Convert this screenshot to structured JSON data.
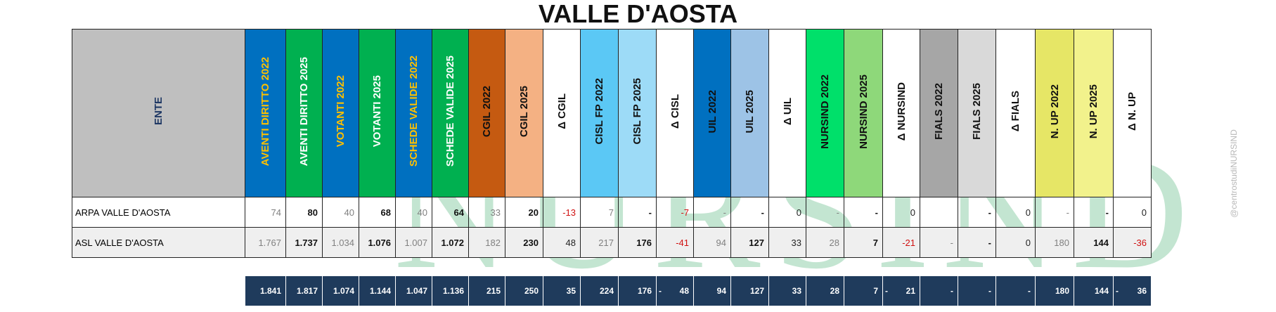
{
  "title": "VALLE D'AOSTA",
  "side_watermark": "@centrostudiNURSIND",
  "background_watermark": "NURSIND",
  "header": {
    "ente": "ENTE",
    "columns": [
      {
        "label": "AVENTI DIRITTO 2022",
        "bg": "#0070C0",
        "fg": "#FFC000"
      },
      {
        "label": "AVENTI DIRITTO 2025",
        "bg": "#00B050",
        "fg": "#FFFFFF"
      },
      {
        "label": "VOTANTI 2022",
        "bg": "#0070C0",
        "fg": "#FFC000"
      },
      {
        "label": "VOTANTI 2025",
        "bg": "#00B050",
        "fg": "#FFFFFF"
      },
      {
        "label": "SCHEDE VALIDE 2022",
        "bg": "#0070C0",
        "fg": "#FFC000"
      },
      {
        "label": "SCHEDE VALIDE 2025",
        "bg": "#00B050",
        "fg": "#FFFFFF"
      },
      {
        "label": "CGIL 2022",
        "bg": "#C55A11",
        "fg": "#111111"
      },
      {
        "label": "CGIL 2025",
        "bg": "#F4B183",
        "fg": "#111111"
      },
      {
        "label": "Δ CGIL",
        "bg": "#FFFFFF",
        "fg": "#111111"
      },
      {
        "label": "CISL FP 2022",
        "bg": "#5BC8F5",
        "fg": "#111111"
      },
      {
        "label": "CISL FP 2025",
        "bg": "#9DDBF7",
        "fg": "#111111"
      },
      {
        "label": "Δ CISL",
        "bg": "#FFFFFF",
        "fg": "#111111"
      },
      {
        "label": "UIL 2022",
        "bg": "#0070C0",
        "fg": "#111111"
      },
      {
        "label": "UIL 2025",
        "bg": "#9DC3E6",
        "fg": "#111111"
      },
      {
        "label": "Δ UIL",
        "bg": "#FFFFFF",
        "fg": "#111111"
      },
      {
        "label": "NURSIND 2022",
        "bg": "#00E06A",
        "fg": "#111111"
      },
      {
        "label": "NURSIND 2025",
        "bg": "#8ED87A",
        "fg": "#111111"
      },
      {
        "label": "Δ NURSIND",
        "bg": "#FFFFFF",
        "fg": "#111111"
      },
      {
        "label": "FIALS 2022",
        "bg": "#A6A6A6",
        "fg": "#111111"
      },
      {
        "label": "FIALS 2025",
        "bg": "#D9D9D9",
        "fg": "#111111"
      },
      {
        "label": "Δ FIALS",
        "bg": "#FFFFFF",
        "fg": "#111111"
      },
      {
        "label": "N. UP 2022",
        "bg": "#E6E666",
        "fg": "#111111"
      },
      {
        "label": "N. UP 2025",
        "bg": "#F2F28C",
        "fg": "#111111"
      },
      {
        "label": "Δ N. UP",
        "bg": "#FFFFFF",
        "fg": "#111111"
      }
    ]
  },
  "rows": [
    {
      "ente": "ARPA VALLE D'AOSTA",
      "shade": false,
      "values": [
        "74",
        "80",
        "40",
        "68",
        "40",
        "64",
        "33",
        "20",
        "-13",
        "7",
        "-",
        "-7",
        "-",
        "-",
        "0",
        "-",
        "-",
        "0",
        "",
        "-",
        "0",
        "-",
        "-",
        "0"
      ],
      "styles": [
        "g",
        "b",
        "g",
        "b",
        "g",
        "b",
        "g",
        "b",
        "r",
        "g",
        "b",
        "r",
        "g",
        "b",
        "k",
        "g",
        "b",
        "k",
        "g",
        "b",
        "k",
        "g",
        "b",
        "k"
      ]
    },
    {
      "ente": "ASL VALLE D'AOSTA",
      "shade": true,
      "values": [
        "1.767",
        "1.737",
        "1.034",
        "1.076",
        "1.007",
        "1.072",
        "182",
        "230",
        "48",
        "217",
        "176",
        "-41",
        "94",
        "127",
        "33",
        "28",
        "7",
        "-21",
        "-",
        "-",
        "0",
        "180",
        "144",
        "-36"
      ],
      "styles": [
        "g",
        "b",
        "g",
        "b",
        "g",
        "b",
        "g",
        "b",
        "k",
        "g",
        "b",
        "r",
        "g",
        "b",
        "k",
        "g",
        "b",
        "r",
        "g",
        "b",
        "k",
        "g",
        "b",
        "r"
      ]
    }
  ],
  "totals": [
    {
      "v": "1.841",
      "m": ""
    },
    {
      "v": "1.817",
      "m": ""
    },
    {
      "v": "1.074",
      "m": ""
    },
    {
      "v": "1.144",
      "m": ""
    },
    {
      "v": "1.047",
      "m": ""
    },
    {
      "v": "1.136",
      "m": ""
    },
    {
      "v": "215",
      "m": ""
    },
    {
      "v": "250",
      "m": ""
    },
    {
      "v": "35",
      "m": ""
    },
    {
      "v": "224",
      "m": ""
    },
    {
      "v": "176",
      "m": ""
    },
    {
      "v": "48",
      "m": "-"
    },
    {
      "v": "94",
      "m": ""
    },
    {
      "v": "127",
      "m": ""
    },
    {
      "v": "33",
      "m": ""
    },
    {
      "v": "28",
      "m": ""
    },
    {
      "v": "7",
      "m": ""
    },
    {
      "v": "21",
      "m": "-"
    },
    {
      "v": "-",
      "m": ""
    },
    {
      "v": "-",
      "m": ""
    },
    {
      "v": "-",
      "m": ""
    },
    {
      "v": "180",
      "m": ""
    },
    {
      "v": "144",
      "m": ""
    },
    {
      "v": "36",
      "m": "-"
    }
  ]
}
